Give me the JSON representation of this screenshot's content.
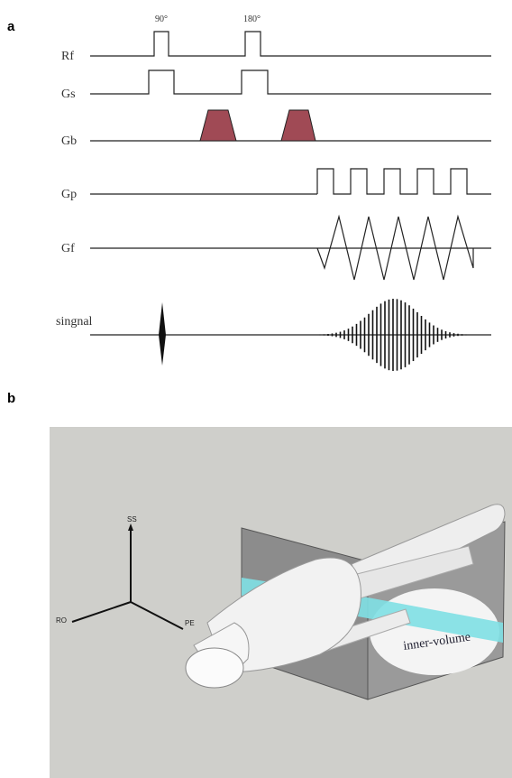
{
  "panel_a": {
    "label": "a",
    "pulses": [
      "90°",
      "180°"
    ],
    "channels": [
      "Rf",
      "Gs",
      "Gb",
      "Gp",
      "Gf",
      "singnal"
    ]
  },
  "panel_b": {
    "label": "b",
    "axes": [
      "SS",
      "RO",
      "PE"
    ],
    "region_label": "inner-volume"
  }
}
